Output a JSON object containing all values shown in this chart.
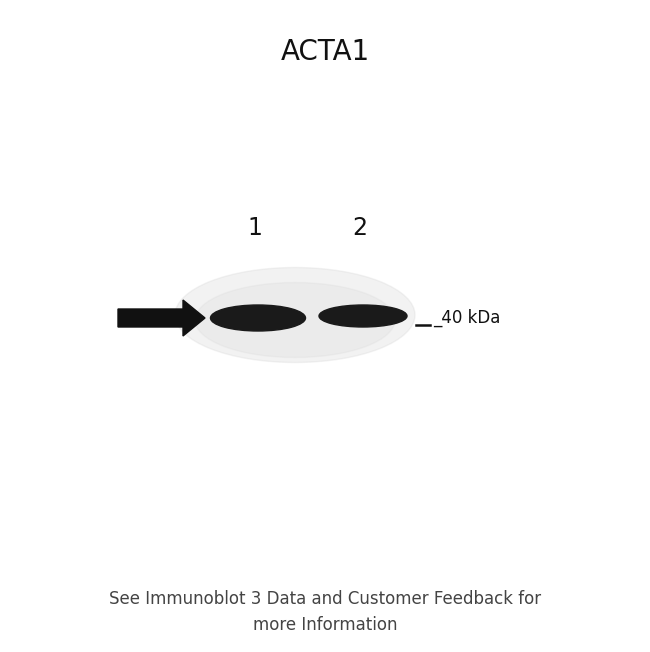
{
  "title": "ACTA1",
  "title_fontsize": 20,
  "title_fontweight": "normal",
  "background_color": "#ffffff",
  "lane_labels": [
    "1",
    "2"
  ],
  "lane_label_fontsize": 17,
  "band_color": "#1a1a1a",
  "glow_color": "#c8c8c8",
  "arrow_color": "#111111",
  "marker_text": "_40 kDa",
  "marker_text_fontsize": 12,
  "footnote": "See Immunoblot 3 Data and Customer Feedback for\nmore Information",
  "footnote_fontsize": 12,
  "footnote_color": "#444444"
}
